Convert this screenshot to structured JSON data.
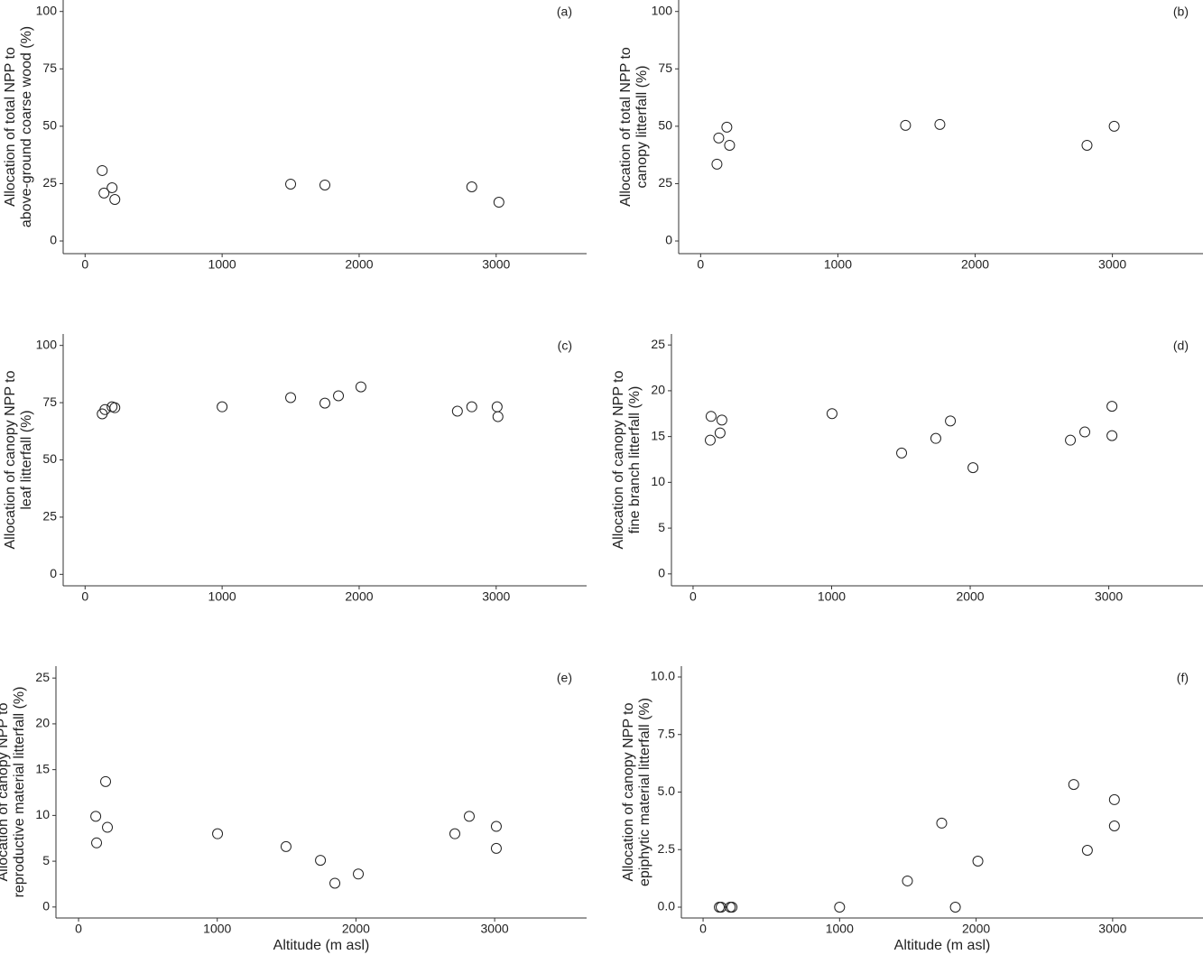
{
  "chart_data": [
    {
      "type": "scatter",
      "annotation": "(a)",
      "ylabel": [
        "Allocation of total NPP to",
        "above-ground coarse wood (%)"
      ],
      "x": [
        125,
        138,
        197,
        217,
        1500,
        1750,
        2822,
        3020
      ],
      "values": [
        30.7,
        20.9,
        23.2,
        18.1,
        24.8,
        24.4,
        23.6,
        16.9
      ],
      "xlim": [
        -160,
        3660
      ],
      "ylim": [
        -5.5,
        105
      ],
      "xticks": [
        0,
        1000,
        2000,
        3000
      ],
      "yticks": [
        0,
        25,
        50,
        75,
        100
      ]
    },
    {
      "type": "scatter",
      "annotation": "(b)",
      "ylabel": [
        "Allocation of total NPP to",
        "canopy litterfall (%)"
      ],
      "x": [
        132,
        119,
        191,
        211,
        1493,
        1743,
        2815,
        3013
      ],
      "values": [
        44.9,
        33.5,
        49.6,
        41.7,
        50.4,
        50.8,
        41.7,
        50
      ],
      "xlim": [
        -160,
        3660
      ],
      "ylim": [
        -5.5,
        105
      ],
      "xticks": [
        0,
        1000,
        2000,
        3000
      ],
      "yticks": [
        0,
        25,
        50,
        75,
        100
      ]
    },
    {
      "type": "scatter",
      "annotation": "(c)",
      "ylabel": [
        "Allocation of canopy NPP to",
        "leaf litterfall (%)"
      ],
      "x": [
        125,
        145,
        197,
        217,
        1000,
        1500,
        1750,
        1849,
        2013,
        2717,
        2822,
        3007,
        3013
      ],
      "values": [
        70.1,
        72,
        73.2,
        72.8,
        73.2,
        77.2,
        74.8,
        78,
        81.9,
        71.3,
        73.2,
        73.2,
        68.9
      ],
      "xlim": [
        -160,
        3660
      ],
      "ylim": [
        -5,
        105
      ],
      "xticks": [
        0,
        1000,
        2000,
        3000
      ],
      "yticks": [
        0,
        25,
        50,
        75,
        100
      ]
    },
    {
      "type": "scatter",
      "annotation": "(d)",
      "ylabel": [
        "Allocation of canopy NPP to",
        "fine branch litterfall (%)"
      ],
      "x": [
        130,
        124,
        208,
        195,
        1003,
        1505,
        1752,
        1857,
        2020,
        2723,
        2827,
        3023,
        3023
      ],
      "values": [
        17.2,
        14.6,
        16.8,
        15.4,
        17.5,
        13.2,
        14.8,
        16.7,
        11.6,
        14.6,
        15.5,
        18.3,
        15.1
      ],
      "xlim": [
        -156,
        3680
      ],
      "ylim": [
        -1.3,
        26.2
      ],
      "xticks": [
        0,
        1000,
        2000,
        3000
      ],
      "yticks": [
        0,
        5,
        10,
        15,
        20,
        25
      ]
    },
    {
      "type": "scatter",
      "annotation": "(e)",
      "xlabel": "Altitude (m asl)",
      "ylabel": [
        "Allocation of canopy NPP to",
        "reproductive material litterfall (%)"
      ],
      "x": [
        124,
        130,
        195,
        208,
        1002,
        1496,
        1744,
        1848,
        2017,
        2713,
        2817,
        3012,
        3012
      ],
      "values": [
        9.9,
        7.0,
        13.7,
        8.7,
        8.0,
        6.6,
        5.1,
        2.6,
        3.6,
        8.0,
        9.9,
        8.8,
        6.4
      ],
      "xlim": [
        -163,
        3663
      ],
      "ylim": [
        -1.2,
        26.3
      ],
      "xticks": [
        0,
        1000,
        2000,
        3000
      ],
      "yticks": [
        0,
        5,
        10,
        15,
        20,
        25
      ]
    },
    {
      "type": "scatter",
      "annotation": "(f)",
      "xlabel": "Altitude (m asl)",
      "ylabel": [
        "Allocation of canopy NPP to",
        "epiphytic material litterfall (%)"
      ],
      "x": [
        119,
        132,
        199,
        212,
        1000,
        1497,
        1748,
        1848,
        2013,
        2715,
        2815,
        3013,
        3013
      ],
      "values": [
        0,
        0,
        0,
        0,
        0,
        1.14,
        3.65,
        0,
        2.0,
        5.33,
        2.47,
        4.67,
        3.53
      ],
      "xlim": [
        -159,
        3662
      ],
      "ylim": [
        -0.47,
        10.47
      ],
      "xticks": [
        0,
        1000,
        2000,
        3000
      ],
      "yticks": [
        {
          "value": 0,
          "label": "0.0"
        },
        2.5,
        {
          "value": 5,
          "label": "5.0"
        },
        7.5,
        {
          "value": 10,
          "label": "10.0"
        }
      ]
    }
  ]
}
